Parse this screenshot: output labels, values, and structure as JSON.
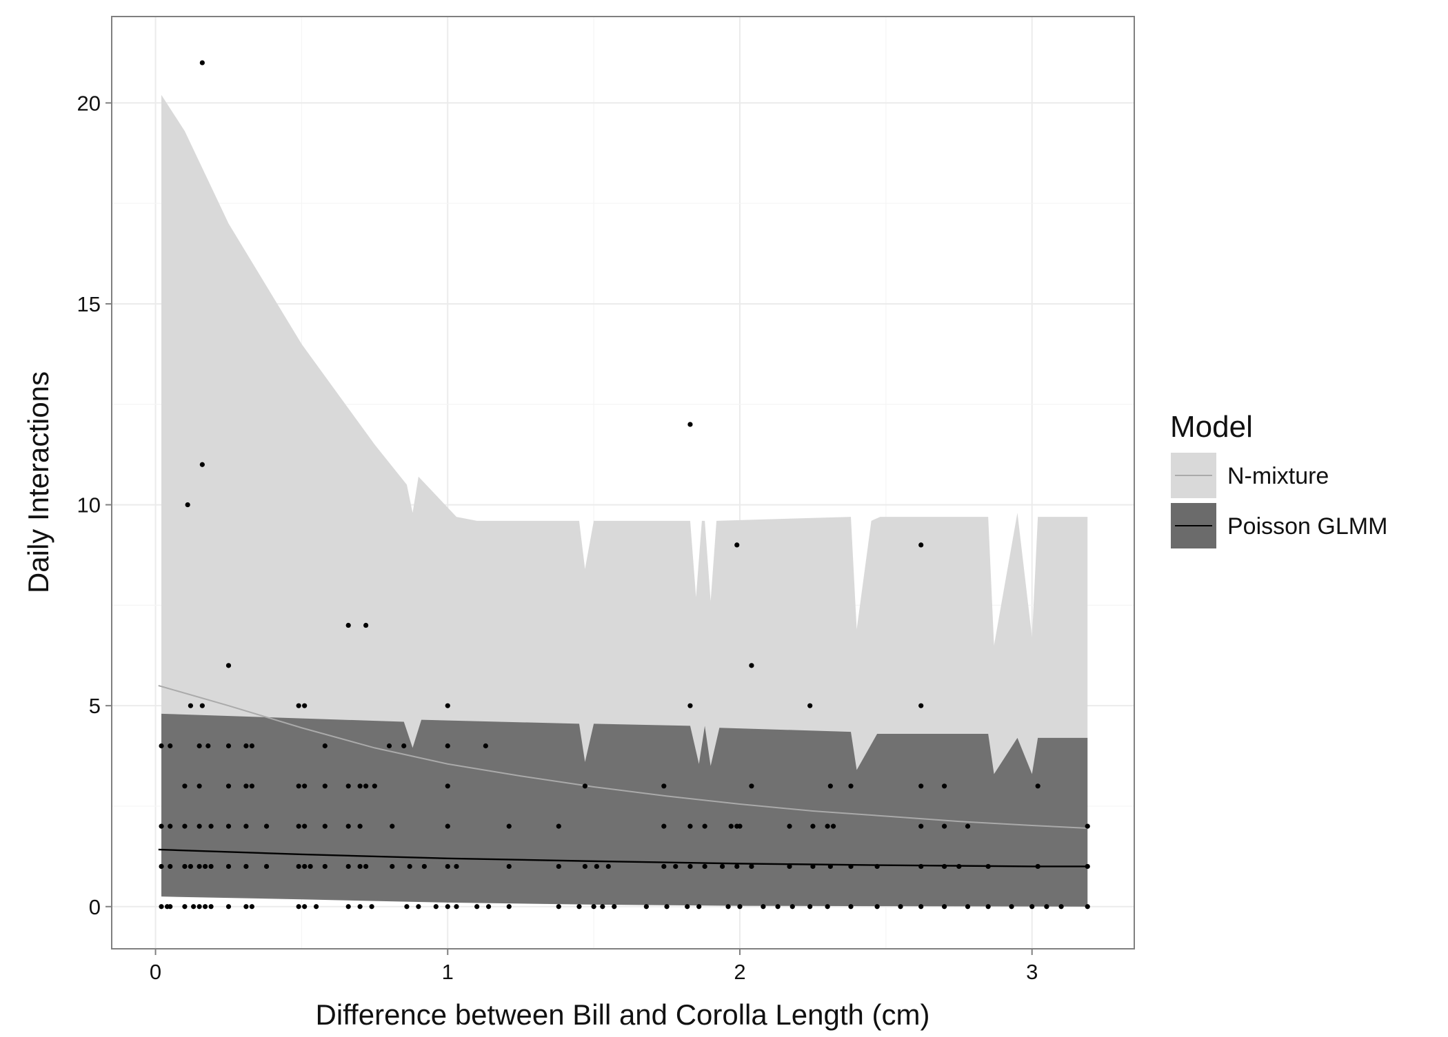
{
  "chart_data": {
    "type": "scatter",
    "title": "",
    "xlabel": "Difference between Bill and Corolla Length (cm)",
    "ylabel": "Daily Interactions",
    "xlim": [
      -0.15,
      3.35
    ],
    "ylim": [
      -1.05,
      22.15
    ],
    "x_ticks": [
      0,
      1,
      2,
      3
    ],
    "y_ticks": [
      0,
      5,
      10,
      15,
      20
    ],
    "grid": true,
    "legend": {
      "title": "Model",
      "position": "right",
      "entries": [
        {
          "label": "N-mixture",
          "fill": "#d9d9d9",
          "line": "#aaaaaa"
        },
        {
          "label": "Poisson GLMM",
          "fill": "#6b6b6b",
          "line": "#000000"
        }
      ]
    },
    "series": [
      {
        "name": "N-mixture",
        "line": [
          [
            0.01,
            5.5
          ],
          [
            0.25,
            5.0
          ],
          [
            0.5,
            4.45
          ],
          [
            0.75,
            3.95
          ],
          [
            1.0,
            3.55
          ],
          [
            1.25,
            3.25
          ],
          [
            1.5,
            2.98
          ],
          [
            1.75,
            2.75
          ],
          [
            2.0,
            2.55
          ],
          [
            2.25,
            2.38
          ],
          [
            2.5,
            2.25
          ],
          [
            2.75,
            2.12
          ],
          [
            3.0,
            2.02
          ],
          [
            3.19,
            1.95
          ]
        ],
        "upper": [
          [
            0.02,
            20.2
          ],
          [
            0.1,
            19.3
          ],
          [
            0.25,
            17.0
          ],
          [
            0.5,
            14.0
          ],
          [
            0.75,
            11.5
          ],
          [
            0.86,
            10.5
          ],
          [
            0.88,
            9.8
          ],
          [
            0.9,
            10.7
          ],
          [
            1.03,
            9.7
          ],
          [
            1.1,
            9.6
          ],
          [
            1.45,
            9.6
          ],
          [
            1.47,
            8.4
          ],
          [
            1.5,
            9.6
          ],
          [
            1.83,
            9.6
          ],
          [
            1.85,
            7.7
          ],
          [
            1.87,
            9.6
          ],
          [
            1.88,
            9.6
          ],
          [
            1.9,
            7.6
          ],
          [
            1.92,
            9.6
          ],
          [
            2.38,
            9.7
          ],
          [
            2.4,
            6.9
          ],
          [
            2.45,
            9.6
          ],
          [
            2.48,
            9.7
          ],
          [
            2.85,
            9.7
          ],
          [
            2.87,
            6.5
          ],
          [
            2.95,
            9.8
          ],
          [
            3.0,
            6.7
          ],
          [
            3.02,
            9.7
          ],
          [
            3.19,
            9.7
          ]
        ],
        "lower": [
          [
            0.02,
            0.3
          ],
          [
            0.5,
            0.22
          ],
          [
            1.0,
            0.12
          ],
          [
            1.5,
            0.06
          ],
          [
            2.0,
            0.03
          ],
          [
            2.5,
            0.02
          ],
          [
            3.0,
            0.01
          ],
          [
            3.19,
            0.0
          ]
        ]
      },
      {
        "name": "Poisson GLMM",
        "line": [
          [
            0.01,
            1.42
          ],
          [
            0.5,
            1.3
          ],
          [
            1.0,
            1.2
          ],
          [
            1.5,
            1.13
          ],
          [
            2.0,
            1.07
          ],
          [
            2.5,
            1.03
          ],
          [
            3.0,
            1.0
          ],
          [
            3.19,
            1.0
          ]
        ],
        "upper": [
          [
            0.02,
            4.8
          ],
          [
            0.85,
            4.6
          ],
          [
            0.88,
            3.95
          ],
          [
            0.91,
            4.65
          ],
          [
            1.45,
            4.55
          ],
          [
            1.47,
            3.6
          ],
          [
            1.5,
            4.55
          ],
          [
            1.83,
            4.5
          ],
          [
            1.86,
            3.55
          ],
          [
            1.88,
            4.5
          ],
          [
            1.9,
            3.5
          ],
          [
            1.93,
            4.45
          ],
          [
            2.38,
            4.35
          ],
          [
            2.4,
            3.4
          ],
          [
            2.47,
            4.3
          ],
          [
            2.85,
            4.3
          ],
          [
            2.87,
            3.3
          ],
          [
            2.95,
            4.2
          ],
          [
            3.0,
            3.3
          ],
          [
            3.02,
            4.2
          ],
          [
            3.19,
            4.2
          ]
        ],
        "lower": [
          [
            0.02,
            0.25
          ],
          [
            0.5,
            0.18
          ],
          [
            1.0,
            0.1
          ],
          [
            1.5,
            0.05
          ],
          [
            2.0,
            0.02
          ],
          [
            2.5,
            0.01
          ],
          [
            3.19,
            0.0
          ]
        ]
      }
    ],
    "points": [
      [
        0.16,
        21
      ],
      [
        1.83,
        12
      ],
      [
        0.16,
        11
      ],
      [
        0.11,
        10
      ],
      [
        1.99,
        9
      ],
      [
        2.62,
        9
      ],
      [
        0.66,
        7
      ],
      [
        0.72,
        7
      ],
      [
        0.25,
        6
      ],
      [
        2.04,
        6
      ],
      [
        0.12,
        5
      ],
      [
        0.16,
        5
      ],
      [
        0.49,
        5
      ],
      [
        0.51,
        5
      ],
      [
        1.0,
        5
      ],
      [
        1.83,
        5
      ],
      [
        2.24,
        5
      ],
      [
        2.62,
        5
      ],
      [
        0.02,
        4
      ],
      [
        0.05,
        4
      ],
      [
        0.15,
        4
      ],
      [
        0.18,
        4
      ],
      [
        0.25,
        4
      ],
      [
        0.31,
        4
      ],
      [
        0.33,
        4
      ],
      [
        0.58,
        4
      ],
      [
        0.8,
        4
      ],
      [
        0.85,
        4
      ],
      [
        1.0,
        4
      ],
      [
        1.13,
        4
      ],
      [
        0.1,
        3
      ],
      [
        0.15,
        3
      ],
      [
        0.25,
        3
      ],
      [
        0.31,
        3
      ],
      [
        0.33,
        3
      ],
      [
        0.49,
        3
      ],
      [
        0.51,
        3
      ],
      [
        0.58,
        3
      ],
      [
        0.66,
        3
      ],
      [
        0.7,
        3
      ],
      [
        0.72,
        3
      ],
      [
        0.75,
        3
      ],
      [
        1.0,
        3
      ],
      [
        1.47,
        3
      ],
      [
        1.74,
        3
      ],
      [
        2.04,
        3
      ],
      [
        2.31,
        3
      ],
      [
        2.38,
        3
      ],
      [
        2.62,
        3
      ],
      [
        2.7,
        3
      ],
      [
        3.02,
        3
      ],
      [
        0.02,
        2
      ],
      [
        0.05,
        2
      ],
      [
        0.1,
        2
      ],
      [
        0.15,
        2
      ],
      [
        0.19,
        2
      ],
      [
        0.25,
        2
      ],
      [
        0.31,
        2
      ],
      [
        0.38,
        2
      ],
      [
        0.49,
        2
      ],
      [
        0.51,
        2
      ],
      [
        0.58,
        2
      ],
      [
        0.66,
        2
      ],
      [
        0.7,
        2
      ],
      [
        0.81,
        2
      ],
      [
        1.0,
        2
      ],
      [
        1.21,
        2
      ],
      [
        1.38,
        2
      ],
      [
        1.74,
        2
      ],
      [
        1.83,
        2
      ],
      [
        1.88,
        2
      ],
      [
        1.97,
        2
      ],
      [
        1.99,
        2
      ],
      [
        2.0,
        2
      ],
      [
        2.17,
        2
      ],
      [
        2.25,
        2
      ],
      [
        2.3,
        2
      ],
      [
        2.32,
        2
      ],
      [
        2.62,
        2
      ],
      [
        2.7,
        2
      ],
      [
        2.78,
        2
      ],
      [
        3.19,
        2
      ],
      [
        0.02,
        1
      ],
      [
        0.05,
        1
      ],
      [
        0.1,
        1
      ],
      [
        0.12,
        1
      ],
      [
        0.15,
        1
      ],
      [
        0.17,
        1
      ],
      [
        0.19,
        1
      ],
      [
        0.25,
        1
      ],
      [
        0.31,
        1
      ],
      [
        0.38,
        1
      ],
      [
        0.49,
        1
      ],
      [
        0.51,
        1
      ],
      [
        0.53,
        1
      ],
      [
        0.58,
        1
      ],
      [
        0.66,
        1
      ],
      [
        0.7,
        1
      ],
      [
        0.72,
        1
      ],
      [
        0.81,
        1
      ],
      [
        0.87,
        1
      ],
      [
        0.92,
        1
      ],
      [
        1.0,
        1
      ],
      [
        1.03,
        1
      ],
      [
        1.21,
        1
      ],
      [
        1.38,
        1
      ],
      [
        1.47,
        1
      ],
      [
        1.51,
        1
      ],
      [
        1.55,
        1
      ],
      [
        1.74,
        1
      ],
      [
        1.78,
        1
      ],
      [
        1.83,
        1
      ],
      [
        1.88,
        1
      ],
      [
        1.94,
        1
      ],
      [
        1.99,
        1
      ],
      [
        2.04,
        1
      ],
      [
        2.17,
        1
      ],
      [
        2.25,
        1
      ],
      [
        2.31,
        1
      ],
      [
        2.38,
        1
      ],
      [
        2.47,
        1
      ],
      [
        2.62,
        1
      ],
      [
        2.7,
        1
      ],
      [
        2.75,
        1
      ],
      [
        2.85,
        1
      ],
      [
        3.02,
        1
      ],
      [
        3.19,
        1
      ],
      [
        0.02,
        0
      ],
      [
        0.04,
        0
      ],
      [
        0.05,
        0
      ],
      [
        0.1,
        0
      ],
      [
        0.13,
        0
      ],
      [
        0.15,
        0
      ],
      [
        0.17,
        0
      ],
      [
        0.19,
        0
      ],
      [
        0.25,
        0
      ],
      [
        0.31,
        0
      ],
      [
        0.33,
        0
      ],
      [
        0.49,
        0
      ],
      [
        0.51,
        0
      ],
      [
        0.55,
        0
      ],
      [
        0.66,
        0
      ],
      [
        0.7,
        0
      ],
      [
        0.74,
        0
      ],
      [
        0.86,
        0
      ],
      [
        0.9,
        0
      ],
      [
        0.96,
        0
      ],
      [
        1.0,
        0
      ],
      [
        1.03,
        0
      ],
      [
        1.1,
        0
      ],
      [
        1.14,
        0
      ],
      [
        1.21,
        0
      ],
      [
        1.38,
        0
      ],
      [
        1.45,
        0
      ],
      [
        1.5,
        0
      ],
      [
        1.53,
        0
      ],
      [
        1.57,
        0
      ],
      [
        1.68,
        0
      ],
      [
        1.75,
        0
      ],
      [
        1.82,
        0
      ],
      [
        1.86,
        0
      ],
      [
        1.96,
        0
      ],
      [
        2.0,
        0
      ],
      [
        2.08,
        0
      ],
      [
        2.13,
        0
      ],
      [
        2.18,
        0
      ],
      [
        2.24,
        0
      ],
      [
        2.3,
        0
      ],
      [
        2.38,
        0
      ],
      [
        2.47,
        0
      ],
      [
        2.55,
        0
      ],
      [
        2.62,
        0
      ],
      [
        2.7,
        0
      ],
      [
        2.78,
        0
      ],
      [
        2.85,
        0
      ],
      [
        2.93,
        0
      ],
      [
        3.0,
        0
      ],
      [
        3.05,
        0
      ],
      [
        3.1,
        0
      ],
      [
        3.19,
        0
      ]
    ]
  }
}
